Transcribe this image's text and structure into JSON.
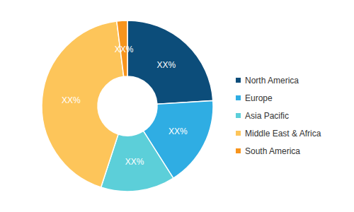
{
  "chart_data": {
    "type": "pie",
    "categories": [
      "North America",
      "Europe",
      "Asia Pacific",
      "Middle East & Africa",
      "South America"
    ],
    "values": [
      24,
      17,
      14,
      43,
      2
    ],
    "value_labels": [
      "XX%",
      "XX%",
      "XX%",
      "XX%",
      "XX%"
    ],
    "colors": [
      "#0c4d7a",
      "#2fade3",
      "#5ccfd9",
      "#fdc55a",
      "#f7941d"
    ],
    "data_labels": true,
    "legend": "right"
  }
}
